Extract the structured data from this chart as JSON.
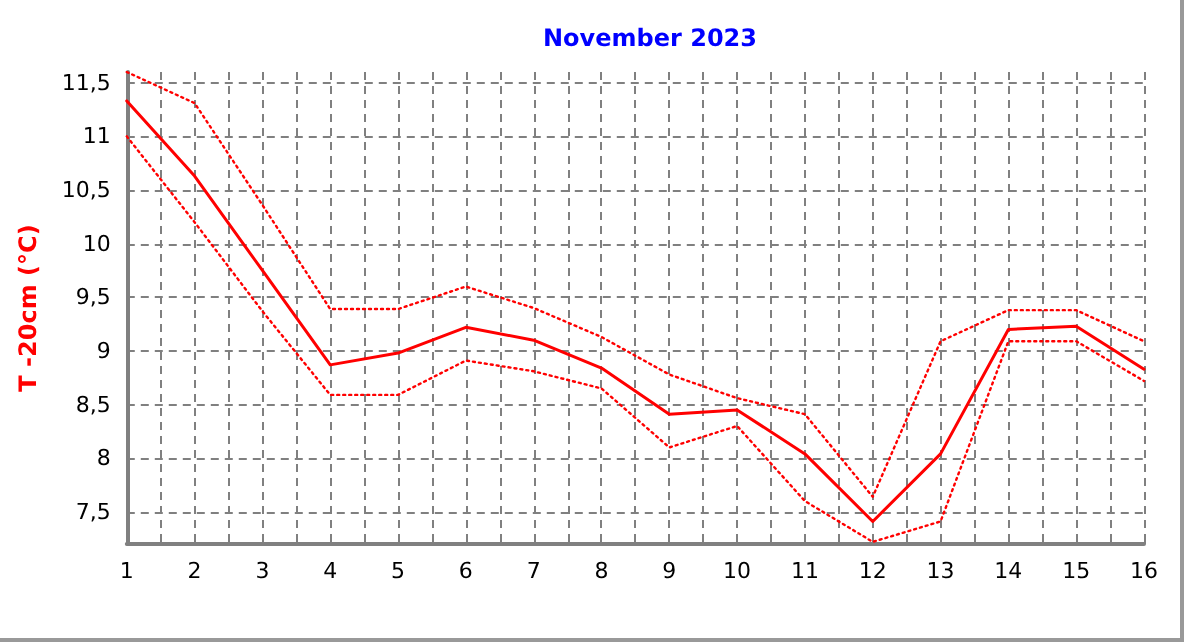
{
  "chart_data": {
    "type": "line",
    "title": "November 2023",
    "ylabel": "T -20cm (°C)",
    "x": [
      1,
      2,
      3,
      4,
      5,
      6,
      7,
      8,
      9,
      10,
      11,
      12,
      13,
      14,
      15,
      16
    ],
    "xlim": [
      1,
      16
    ],
    "xticks": [
      1,
      {
        "value": 1.5,
        "label": null
      },
      2,
      {
        "value": 2.5,
        "label": null
      },
      3,
      {
        "value": 3.5,
        "label": null
      },
      4,
      {
        "value": 4.5,
        "label": null
      },
      5,
      {
        "value": 5.5,
        "label": null
      },
      6,
      {
        "value": 6.5,
        "label": null
      },
      7,
      {
        "value": 7.5,
        "label": null
      },
      8,
      {
        "value": 8.5,
        "label": null
      },
      9,
      {
        "value": 9.5,
        "label": null
      },
      10,
      {
        "value": 10.5,
        "label": null
      },
      11,
      {
        "value": 11.5,
        "label": null
      },
      12,
      {
        "value": 12.5,
        "label": null
      },
      13,
      {
        "value": 13.5,
        "label": null
      },
      14,
      {
        "value": 14.5,
        "label": null
      },
      15,
      {
        "value": 15.5,
        "label": null
      },
      16
    ],
    "ylim": [
      7.2,
      11.6
    ],
    "yticks": [
      {
        "value": 7.5,
        "label": "7,5"
      },
      8,
      {
        "value": 8.5,
        "label": "8,5"
      },
      9,
      {
        "value": 9.5,
        "label": "9,5"
      },
      10,
      {
        "value": 10.5,
        "label": "10,5"
      },
      11,
      {
        "value": 11.5,
        "label": "11,5"
      }
    ],
    "grid": true,
    "marker": "none",
    "series": [
      {
        "color": "#ff0000",
        "line_style": "dotted",
        "values": [
          11.6,
          11.31,
          10.36,
          9.39,
          9.39,
          9.6,
          9.4,
          9.13,
          8.78,
          8.56,
          8.41,
          7.64,
          9.09,
          9.38,
          9.38,
          9.09
        ]
      },
      {
        "color": "#ff0000",
        "line_style": "solid",
        "values": [
          11.33,
          10.63,
          9.75,
          8.87,
          8.98,
          9.22,
          9.1,
          8.84,
          8.41,
          8.45,
          8.04,
          7.41,
          8.04,
          9.2,
          9.23,
          8.83
        ]
      },
      {
        "color": "#ff0000",
        "line_style": "dotted",
        "values": [
          11.0,
          10.2,
          9.37,
          8.59,
          8.59,
          8.91,
          8.81,
          8.65,
          8.1,
          8.3,
          7.6,
          7.22,
          7.41,
          9.09,
          9.09,
          8.72
        ]
      }
    ]
  }
}
